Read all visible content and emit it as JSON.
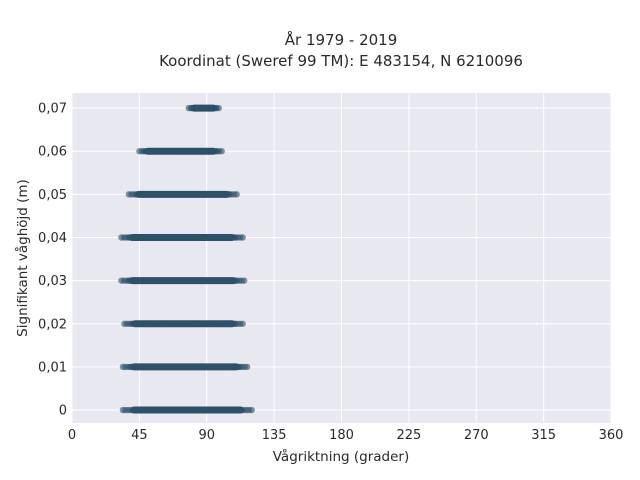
{
  "chart_data": {
    "type": "scatter",
    "title_line1": "År 1979 - 2019",
    "title_line2": "Koordinat (Sweref 99 TM): E 483154, N 6210096",
    "xlabel": "Vågriktning (grader)",
    "ylabel": "Signifikant våghöjd (m)",
    "xlim": [
      0,
      360
    ],
    "ylim": [
      -0.003,
      0.0735
    ],
    "x_ticks": [
      0,
      45,
      90,
      135,
      180,
      225,
      270,
      315,
      360
    ],
    "x_tick_labels": [
      "0",
      "45",
      "90",
      "135",
      "180",
      "225",
      "270",
      "315",
      "360"
    ],
    "y_ticks": [
      0,
      0.01,
      0.02,
      0.03,
      0.04,
      0.05,
      0.06,
      0.07
    ],
    "y_tick_labels": [
      "0",
      "0,01",
      "0,02",
      "0,03",
      "0,04",
      "0,05",
      "0,06",
      "0,07"
    ],
    "grid": true,
    "background_color": "#e8e8f1",
    "point_color": "#2e5068",
    "series": [
      {
        "bands": [
          {
            "y": 0.0,
            "x_min": 34,
            "x_max": 120
          },
          {
            "y": 0.01,
            "x_min": 34,
            "x_max": 117
          },
          {
            "y": 0.02,
            "x_min": 35,
            "x_max": 114
          },
          {
            "y": 0.03,
            "x_min": 33,
            "x_max": 115
          },
          {
            "y": 0.04,
            "x_min": 33,
            "x_max": 114
          },
          {
            "y": 0.05,
            "x_min": 38,
            "x_max": 110
          },
          {
            "y": 0.06,
            "x_min": 45,
            "x_max": 100
          },
          {
            "y": 0.07,
            "x_min": 78,
            "x_max": 98
          }
        ]
      }
    ]
  }
}
